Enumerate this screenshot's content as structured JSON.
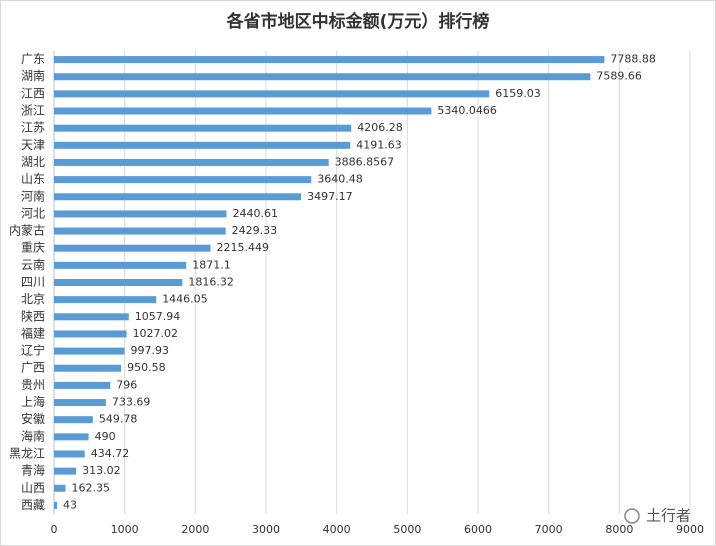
{
  "chart_data": {
    "type": "bar",
    "orientation": "horizontal",
    "title": "各省市地区中标金额(万元）排行榜",
    "categories": [
      "广东",
      "湖南",
      "江西",
      "浙江",
      "江苏",
      "天津",
      "湖北",
      "山东",
      "河南",
      "河北",
      "内蒙古",
      "重庆",
      "云南",
      "四川",
      "北京",
      "陕西",
      "福建",
      "辽宁",
      "广西",
      "贵州",
      "上海",
      "安徽",
      "海南",
      "黑龙江",
      "青海",
      "山西",
      "西藏"
    ],
    "values": [
      7788.88,
      7589.66,
      6159.03,
      5340.0466,
      4206.28,
      4191.63,
      3886.8567,
      3640.48,
      3497.17,
      2440.61,
      2429.33,
      2215.449,
      1871.1,
      1816.32,
      1446.05,
      1057.94,
      1027.02,
      997.93,
      950.58,
      796,
      733.69,
      549.78,
      490,
      434.72,
      313.02,
      162.35,
      43
    ],
    "color": "#5b9bd5",
    "xlim": [
      0,
      9000
    ],
    "xticks": [
      0,
      1000,
      2000,
      3000,
      4000,
      5000,
      6000,
      7000,
      8000,
      9000
    ],
    "grid": true
  },
  "watermark": "土行者"
}
